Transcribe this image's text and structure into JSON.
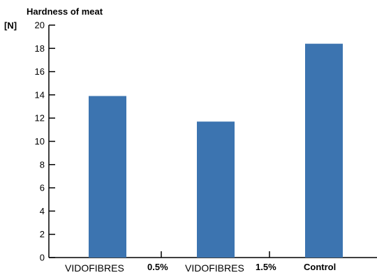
{
  "chart_data": {
    "type": "bar",
    "title": "Hardness of meat",
    "ylabel": "[N]",
    "xlabel": "",
    "categories": [
      {
        "main": "VIDOFIBRES",
        "suffix": "0.5%"
      },
      {
        "main": "VIDOFIBRES",
        "suffix": "1.5%"
      },
      {
        "main": "",
        "suffix": "Control"
      }
    ],
    "values": [
      13.9,
      11.7,
      18.4
    ],
    "ylim": [
      0,
      20
    ],
    "yticks": [
      "0",
      "2",
      "4",
      "6",
      "8",
      "10",
      "12",
      "14",
      "16",
      "18",
      "20"
    ],
    "grid": false,
    "bar_color": "#3c74b0",
    "axis_color": "#000000"
  }
}
